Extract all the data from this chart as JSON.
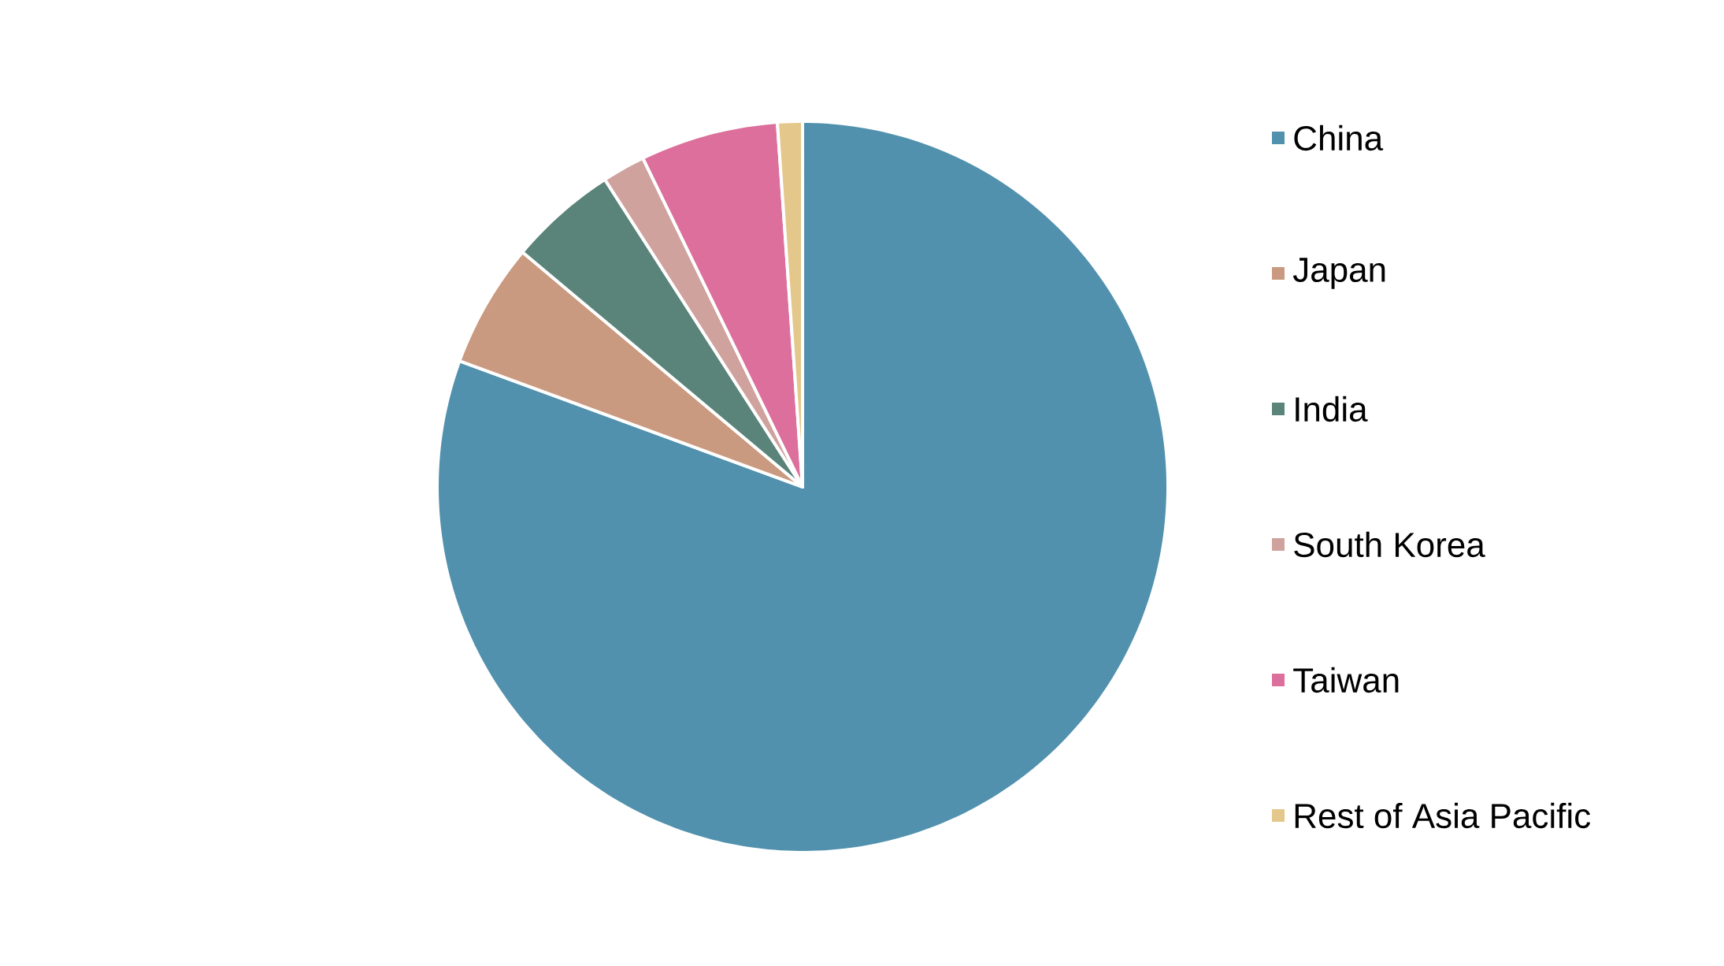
{
  "chart_data": {
    "type": "pie",
    "categories": [
      "China",
      "Japan",
      "India",
      "South Korea",
      "Taiwan",
      "Rest of Asia Pacific"
    ],
    "values": [
      80.6,
      5.5,
      4.8,
      1.9,
      6.1,
      1.1
    ],
    "colors": [
      "#5191ae",
      "#c99a7f",
      "#5a8479",
      "#cfa29d",
      "#dc6f9c",
      "#e4c78a"
    ],
    "legend": "right"
  }
}
